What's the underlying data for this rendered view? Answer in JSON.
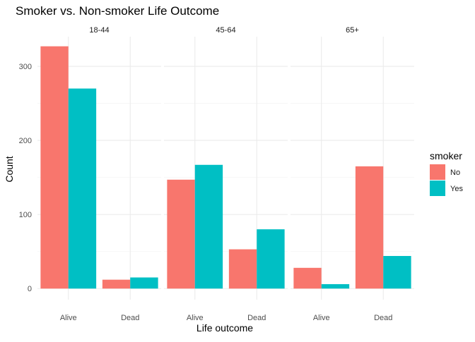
{
  "chart_data": {
    "type": "bar",
    "title": "Smoker vs. Non-smoker Life Outcome",
    "xlabel": "Life outcome",
    "ylabel": "Count",
    "ylim": [
      -15,
      340
    ],
    "yticks": [
      0,
      100,
      200,
      300
    ],
    "grid": true,
    "legend": {
      "title": "smoker",
      "position": "right",
      "entries": [
        {
          "label": "No",
          "color": "#F8766D"
        },
        {
          "label": "Yes",
          "color": "#00BFC4"
        }
      ]
    },
    "categories": [
      "Alive",
      "Dead"
    ],
    "facets": [
      {
        "label": "18-44",
        "series": [
          {
            "name": "No",
            "values": [
              327,
              12
            ]
          },
          {
            "name": "Yes",
            "values": [
              270,
              15
            ]
          }
        ]
      },
      {
        "label": "45-64",
        "series": [
          {
            "name": "No",
            "values": [
              147,
              53
            ]
          },
          {
            "name": "Yes",
            "values": [
              167,
              80
            ]
          }
        ]
      },
      {
        "label": "65+",
        "series": [
          {
            "name": "No",
            "values": [
              28,
              165
            ]
          },
          {
            "name": "Yes",
            "values": [
              6,
              44
            ]
          }
        ]
      }
    ]
  }
}
